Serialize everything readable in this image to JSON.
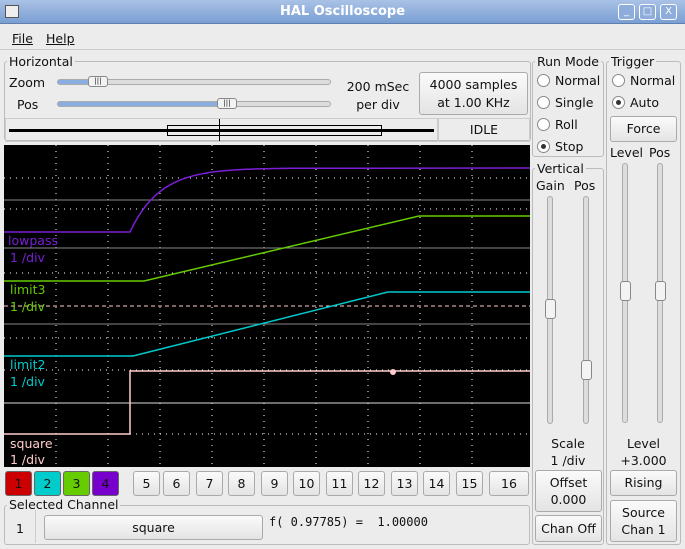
{
  "window": {
    "title": "HAL Oscilloscope",
    "minimize": "_",
    "maximize": "□",
    "close": "X"
  },
  "menu": {
    "file": "File",
    "help": "Help"
  },
  "horizontal": {
    "label": "Horizontal",
    "zoom_label": "Zoom",
    "pos_label": "Pos",
    "zoom_value": 0.14,
    "pos_value": 0.62,
    "rate_line1": "200 mSec",
    "rate_line2": "per div",
    "samples_line1": "4000 samples",
    "samples_line2": "at 1.00 KHz",
    "status": "IDLE"
  },
  "run_mode": {
    "label": "Run Mode",
    "options": [
      "Normal",
      "Single",
      "Roll",
      "Stop"
    ],
    "selected": "Stop"
  },
  "trigger": {
    "label": "Trigger",
    "options": [
      "Normal",
      "Auto"
    ],
    "selected": "Auto",
    "force": "Force",
    "level_label": "Level",
    "pos_label": "Pos",
    "level_title": "Level",
    "level_value": "+3.000",
    "edge": "Rising",
    "source_line1": "Source",
    "source_line2": "Chan  1"
  },
  "vertical": {
    "label": "Vertical",
    "gain_label": "Gain",
    "pos_label": "Pos",
    "scale_title": "Scale",
    "scale_value": "1 /div",
    "offset_label": "Offset",
    "offset_value": "0.000",
    "chan_off": "Chan Off"
  },
  "traces": [
    {
      "name": "lowpass",
      "scale": "1 /div",
      "color": "#7a1fd6"
    },
    {
      "name": "limit3",
      "scale": "1 /div",
      "color": "#66cc00"
    },
    {
      "name": "limit2",
      "scale": "1 /div",
      "color": "#00cccc"
    },
    {
      "name": "square",
      "scale": "1 /div",
      "color": "#ffcccc"
    }
  ],
  "channels": [
    {
      "label": "1",
      "color": "#cc0000"
    },
    {
      "label": "2",
      "color": "#00cccc"
    },
    {
      "label": "3",
      "color": "#66cc00"
    },
    {
      "label": "4",
      "color": "#7700cc"
    },
    {
      "label": "5"
    },
    {
      "label": "6"
    },
    {
      "label": "7"
    },
    {
      "label": "8"
    },
    {
      "label": "9"
    },
    {
      "label": "10"
    },
    {
      "label": "11"
    },
    {
      "label": "12"
    },
    {
      "label": "13"
    },
    {
      "label": "14"
    },
    {
      "label": "15"
    },
    {
      "label": "16"
    }
  ],
  "selected_channel": {
    "label": "Selected Channel",
    "number": "1",
    "name": "square",
    "readout": "f( 0.97785) =  1.00000"
  }
}
